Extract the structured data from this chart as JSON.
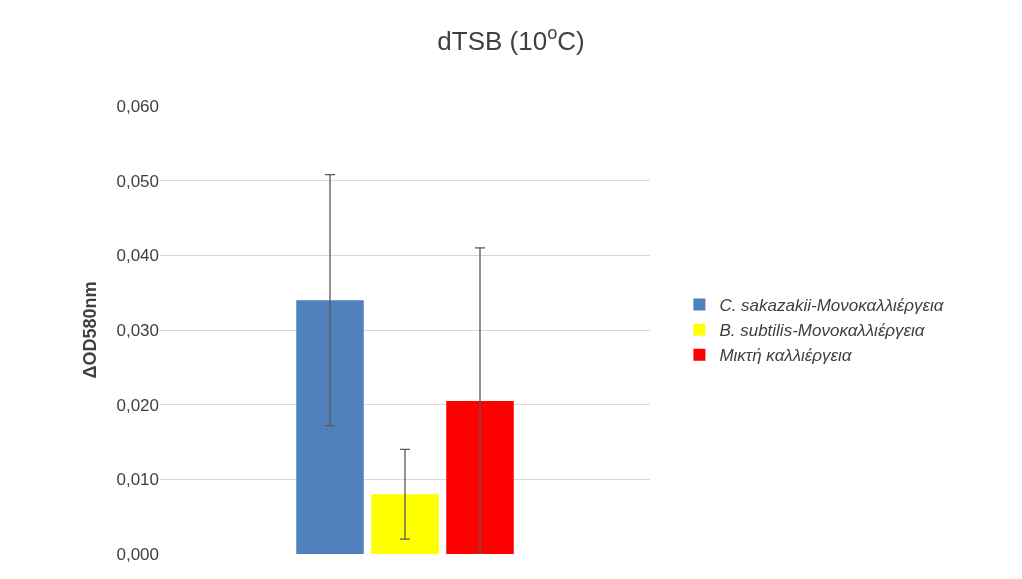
{
  "chart_data": {
    "type": "bar",
    "title": "dTSB (10$^{o}$C)",
    "ylabel": "ΔOD580nm",
    "categories": [
      null
    ],
    "series": [
      {
        "name": "C. sakazakii-Μονοκαλλιέργεια",
        "color": "#4f81bd",
        "values": [
          0.034
        ],
        "errors": [
          0.0168
        ]
      },
      {
        "name": "B. subtilis-Μονοκαλλιέργεια",
        "color": "#ffff00",
        "values": [
          0.008
        ],
        "errors": [
          0.006
        ]
      },
      {
        "name": "Μικτή καλλιέργεια",
        "color": "#ff0000",
        "values": [
          0.0205
        ],
        "errors": [
          0.0205
        ]
      }
    ],
    "ylim": [
      0,
      0.06
    ],
    "yticks": [
      {
        "value": 0,
        "label": "0,000"
      },
      {
        "value": 0.01,
        "label": "0,010"
      },
      {
        "value": 0.02,
        "label": "0,020"
      },
      {
        "value": 0.03,
        "label": "0,030"
      },
      {
        "value": 0.04,
        "label": "0,040"
      },
      {
        "value": 0.05,
        "label": "0,050"
      },
      {
        "value": 0.06,
        "label": "0,060"
      }
    ],
    "grid": "y",
    "legend": "right"
  }
}
